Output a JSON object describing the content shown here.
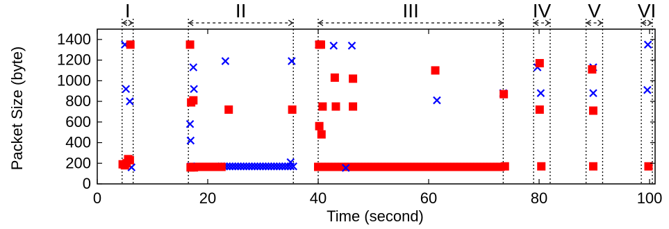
{
  "chart_data": {
    "type": "scatter",
    "title": "",
    "xlabel": "Time (second)",
    "ylabel": "Packet Size (byte)",
    "xlim": [
      0,
      101
    ],
    "ylim": [
      0,
      1500
    ],
    "xticks": [
      0,
      20,
      40,
      60,
      80,
      100
    ],
    "yticks": [
      0,
      200,
      400,
      600,
      800,
      1000,
      1200,
      1400
    ],
    "grid": false,
    "colors": {
      "series_x": "#0000ff",
      "series_square": "#ff0000",
      "axis": "#000000"
    },
    "phases": [
      {
        "label": "I",
        "start": 4.5,
        "end": 6.5
      },
      {
        "label": "II",
        "start": 16.5,
        "end": 35.5
      },
      {
        "label": "III",
        "start": 40.0,
        "end": 73.5
      },
      {
        "label": "IV",
        "start": 79.0,
        "end": 82.0
      },
      {
        "label": "V",
        "start": 88.5,
        "end": 91.5
      },
      {
        "label": "VI",
        "start": 98.5,
        "end": 100.5
      }
    ],
    "series": [
      {
        "marker": "x",
        "color": "#0000ff",
        "points": [
          [
            5.0,
            1350
          ],
          [
            5.2,
            920
          ],
          [
            5.9,
            800
          ],
          [
            5.5,
            190
          ],
          [
            6.2,
            160
          ],
          [
            16.8,
            580
          ],
          [
            16.9,
            420
          ],
          [
            17.4,
            1130
          ],
          [
            17.5,
            920
          ],
          [
            17.0,
            170
          ],
          [
            23.2,
            1190
          ],
          [
            35.2,
            1190
          ],
          [
            35.0,
            210
          ],
          [
            40.1,
            1350
          ],
          [
            42.8,
            1340
          ],
          [
            46.1,
            1340
          ],
          [
            61.5,
            810
          ],
          [
            45.0,
            155
          ],
          [
            73.5,
            880
          ],
          [
            79.7,
            1130
          ],
          [
            80.3,
            880
          ],
          [
            89.8,
            1130
          ],
          [
            89.8,
            880
          ],
          [
            99.7,
            1350
          ],
          [
            99.6,
            910
          ]
        ],
        "bands": [
          {
            "from": 22.5,
            "to": 35.5,
            "step": 0.5,
            "y": 170
          }
        ]
      },
      {
        "marker": "square",
        "color": "#ff0000",
        "points": [
          [
            4.6,
            190
          ],
          [
            5.0,
            180
          ],
          [
            5.3,
            200
          ],
          [
            5.6,
            240
          ],
          [
            5.9,
            230
          ],
          [
            6.0,
            1350
          ],
          [
            16.8,
            1350
          ],
          [
            17.0,
            790
          ],
          [
            17.4,
            810
          ],
          [
            16.9,
            160
          ],
          [
            17.5,
            160
          ],
          [
            23.8,
            720
          ],
          [
            35.3,
            720
          ],
          [
            40.2,
            1350
          ],
          [
            40.5,
            1350
          ],
          [
            40.2,
            560
          ],
          [
            40.6,
            480
          ],
          [
            40.8,
            750
          ],
          [
            43.0,
            1030
          ],
          [
            43.2,
            750
          ],
          [
            46.3,
            1020
          ],
          [
            46.3,
            750
          ],
          [
            61.2,
            1100
          ],
          [
            73.6,
            870
          ],
          [
            73.8,
            170
          ],
          [
            80.1,
            1170
          ],
          [
            80.1,
            720
          ],
          [
            80.4,
            170
          ],
          [
            89.6,
            1110
          ],
          [
            89.8,
            710
          ],
          [
            89.8,
            170
          ],
          [
            99.8,
            170
          ]
        ],
        "bands": [
          {
            "from": 17.0,
            "to": 22.5,
            "step": 0.5,
            "y": 165
          },
          {
            "from": 40.0,
            "to": 73.0,
            "step": 0.6,
            "y": 165
          }
        ]
      }
    ]
  }
}
